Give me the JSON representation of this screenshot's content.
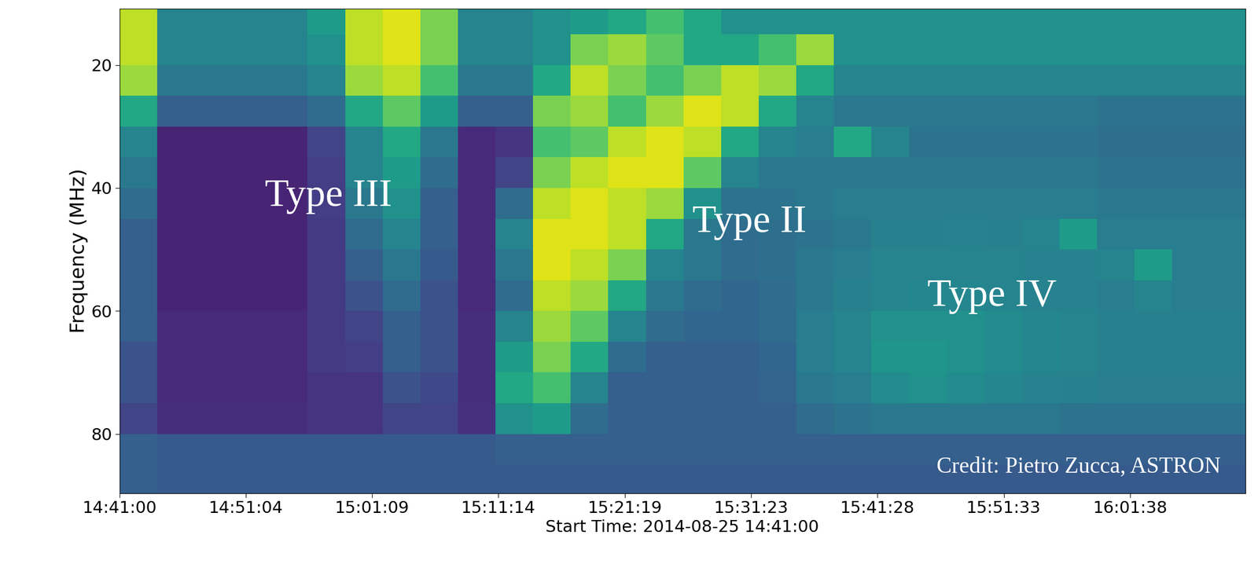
{
  "chart_data": {
    "type": "heatmap",
    "xlabel": "Start Time: 2014-08-25 14:41:00",
    "ylabel": "Frequency (MHz)",
    "color": "viridis",
    "clim": [
      0,
      1
    ],
    "xlim": [
      0,
      5390
    ],
    "ylim": [
      89.7,
      10.8
    ],
    "xticks": [
      {
        "value": 0,
        "label": "14:41:00"
      },
      {
        "value": 604,
        "label": "14:51:04"
      },
      {
        "value": 1209,
        "label": "15:01:09"
      },
      {
        "value": 1814,
        "label": "15:11:14"
      },
      {
        "value": 2419,
        "label": "15:21:19"
      },
      {
        "value": 3023,
        "label": "15:31:23"
      },
      {
        "value": 3628,
        "label": "15:41:28"
      },
      {
        "value": 4233,
        "label": "15:51:33"
      },
      {
        "value": 4838,
        "label": "16:01:38"
      }
    ],
    "yticks": [
      20,
      40,
      60,
      80
    ],
    "x_edges": [
      0,
      180,
      360,
      540,
      720,
      900,
      1080,
      1260,
      1440,
      1620,
      1800,
      1980,
      2160,
      2340,
      2520,
      2700,
      2880,
      3060,
      3240,
      3420,
      3600,
      3780,
      3960,
      4140,
      4320,
      4500,
      4680,
      4860,
      5040,
      5220,
      5400
    ],
    "y_edges": [
      10,
      15,
      20,
      25,
      30,
      35,
      40,
      45,
      50,
      55,
      60,
      65,
      70,
      75,
      80,
      85,
      90
    ],
    "cells": [
      [
        0.9,
        0.45,
        0.45,
        0.45,
        0.45,
        0.55,
        0.9,
        0.95,
        0.8,
        0.45,
        0.45,
        0.5,
        0.55,
        0.6,
        0.7,
        0.6,
        0.5,
        0.5,
        0.5,
        0.5,
        0.5,
        0.5,
        0.5,
        0.5,
        0.5,
        0.5,
        0.5,
        0.5,
        0.5,
        0.5
      ],
      [
        0.9,
        0.45,
        0.45,
        0.45,
        0.45,
        0.5,
        0.9,
        0.95,
        0.8,
        0.45,
        0.45,
        0.5,
        0.8,
        0.85,
        0.75,
        0.6,
        0.6,
        0.7,
        0.85,
        0.5,
        0.5,
        0.5,
        0.5,
        0.5,
        0.5,
        0.5,
        0.5,
        0.5,
        0.5,
        0.5
      ],
      [
        0.85,
        0.4,
        0.4,
        0.4,
        0.4,
        0.45,
        0.85,
        0.9,
        0.7,
        0.4,
        0.4,
        0.6,
        0.9,
        0.8,
        0.7,
        0.8,
        0.9,
        0.85,
        0.6,
        0.45,
        0.45,
        0.45,
        0.45,
        0.45,
        0.45,
        0.45,
        0.45,
        0.45,
        0.45,
        0.45
      ],
      [
        0.6,
        0.3,
        0.3,
        0.3,
        0.3,
        0.35,
        0.6,
        0.75,
        0.55,
        0.3,
        0.3,
        0.8,
        0.85,
        0.7,
        0.85,
        0.95,
        0.9,
        0.6,
        0.45,
        0.4,
        0.4,
        0.4,
        0.4,
        0.4,
        0.4,
        0.4,
        0.38,
        0.38,
        0.38,
        0.38
      ],
      [
        0.45,
        0.1,
        0.1,
        0.1,
        0.1,
        0.2,
        0.45,
        0.6,
        0.4,
        0.12,
        0.15,
        0.7,
        0.75,
        0.9,
        0.95,
        0.9,
        0.6,
        0.45,
        0.42,
        0.6,
        0.45,
        0.38,
        0.38,
        0.38,
        0.38,
        0.38,
        0.36,
        0.36,
        0.36,
        0.36
      ],
      [
        0.4,
        0.1,
        0.1,
        0.1,
        0.1,
        0.18,
        0.45,
        0.55,
        0.35,
        0.12,
        0.2,
        0.8,
        0.9,
        0.95,
        0.95,
        0.75,
        0.45,
        0.4,
        0.4,
        0.4,
        0.4,
        0.4,
        0.4,
        0.4,
        0.4,
        0.4,
        0.38,
        0.38,
        0.38,
        0.38
      ],
      [
        0.35,
        0.1,
        0.1,
        0.1,
        0.1,
        0.18,
        0.4,
        0.5,
        0.3,
        0.12,
        0.35,
        0.9,
        0.95,
        0.9,
        0.85,
        0.5,
        0.38,
        0.38,
        0.4,
        0.42,
        0.42,
        0.42,
        0.42,
        0.42,
        0.42,
        0.42,
        0.4,
        0.4,
        0.4,
        0.4
      ],
      [
        0.3,
        0.1,
        0.1,
        0.1,
        0.1,
        0.17,
        0.35,
        0.45,
        0.3,
        0.12,
        0.45,
        0.95,
        0.95,
        0.9,
        0.6,
        0.4,
        0.35,
        0.36,
        0.38,
        0.4,
        0.43,
        0.43,
        0.44,
        0.43,
        0.45,
        0.55,
        0.42,
        0.42,
        0.42,
        0.42
      ],
      [
        0.3,
        0.1,
        0.1,
        0.1,
        0.1,
        0.17,
        0.3,
        0.4,
        0.28,
        0.12,
        0.4,
        0.95,
        0.9,
        0.8,
        0.45,
        0.4,
        0.35,
        0.36,
        0.4,
        0.42,
        0.45,
        0.45,
        0.45,
        0.45,
        0.44,
        0.44,
        0.45,
        0.55,
        0.42,
        0.42
      ],
      [
        0.3,
        0.1,
        0.1,
        0.1,
        0.1,
        0.17,
        0.25,
        0.35,
        0.25,
        0.12,
        0.35,
        0.9,
        0.85,
        0.6,
        0.4,
        0.35,
        0.33,
        0.35,
        0.4,
        0.43,
        0.45,
        0.46,
        0.46,
        0.45,
        0.44,
        0.44,
        0.42,
        0.45,
        0.42,
        0.42
      ],
      [
        0.3,
        0.12,
        0.12,
        0.12,
        0.12,
        0.17,
        0.2,
        0.3,
        0.25,
        0.13,
        0.45,
        0.85,
        0.75,
        0.45,
        0.35,
        0.33,
        0.33,
        0.35,
        0.42,
        0.45,
        0.5,
        0.5,
        0.5,
        0.48,
        0.46,
        0.45,
        0.43,
        0.43,
        0.43,
        0.43
      ],
      [
        0.25,
        0.12,
        0.12,
        0.12,
        0.12,
        0.17,
        0.18,
        0.3,
        0.25,
        0.13,
        0.55,
        0.8,
        0.6,
        0.35,
        0.3,
        0.3,
        0.3,
        0.33,
        0.42,
        0.45,
        0.52,
        0.52,
        0.5,
        0.48,
        0.46,
        0.45,
        0.43,
        0.43,
        0.43,
        0.43
      ],
      [
        0.25,
        0.12,
        0.12,
        0.12,
        0.12,
        0.15,
        0.15,
        0.25,
        0.22,
        0.13,
        0.6,
        0.7,
        0.45,
        0.3,
        0.3,
        0.3,
        0.3,
        0.32,
        0.4,
        0.42,
        0.48,
        0.5,
        0.48,
        0.46,
        0.44,
        0.43,
        0.42,
        0.42,
        0.42,
        0.42
      ],
      [
        0.2,
        0.13,
        0.13,
        0.13,
        0.13,
        0.15,
        0.15,
        0.2,
        0.2,
        0.14,
        0.5,
        0.55,
        0.35,
        0.3,
        0.3,
        0.3,
        0.3,
        0.3,
        0.35,
        0.38,
        0.4,
        0.4,
        0.4,
        0.4,
        0.4,
        0.38,
        0.38,
        0.38,
        0.38,
        0.38
      ],
      [
        0.3,
        0.28,
        0.28,
        0.28,
        0.28,
        0.28,
        0.28,
        0.28,
        0.28,
        0.28,
        0.3,
        0.3,
        0.3,
        0.3,
        0.3,
        0.3,
        0.3,
        0.3,
        0.3,
        0.3,
        0.3,
        0.3,
        0.3,
        0.3,
        0.3,
        0.3,
        0.3,
        0.3,
        0.3,
        0.3
      ],
      [
        0.3,
        0.28,
        0.28,
        0.28,
        0.28,
        0.28,
        0.28,
        0.28,
        0.28,
        0.28,
        0.28,
        0.28,
        0.28,
        0.28,
        0.28,
        0.28,
        0.28,
        0.28,
        0.28,
        0.28,
        0.28,
        0.28,
        0.28,
        0.28,
        0.28,
        0.28,
        0.28,
        0.28,
        0.28,
        0.28
      ]
    ],
    "annotations": [
      {
        "text": "Type III",
        "x": 1000,
        "y": 41.4
      },
      {
        "text": "Type II",
        "x": 3016,
        "y": 45.6
      },
      {
        "text": "Type IV",
        "x": 4177,
        "y": 57.6
      },
      {
        "text": "Credit: Pietro Zucca, ASTRON",
        "x": 4591,
        "y": 85.3
      }
    ]
  }
}
